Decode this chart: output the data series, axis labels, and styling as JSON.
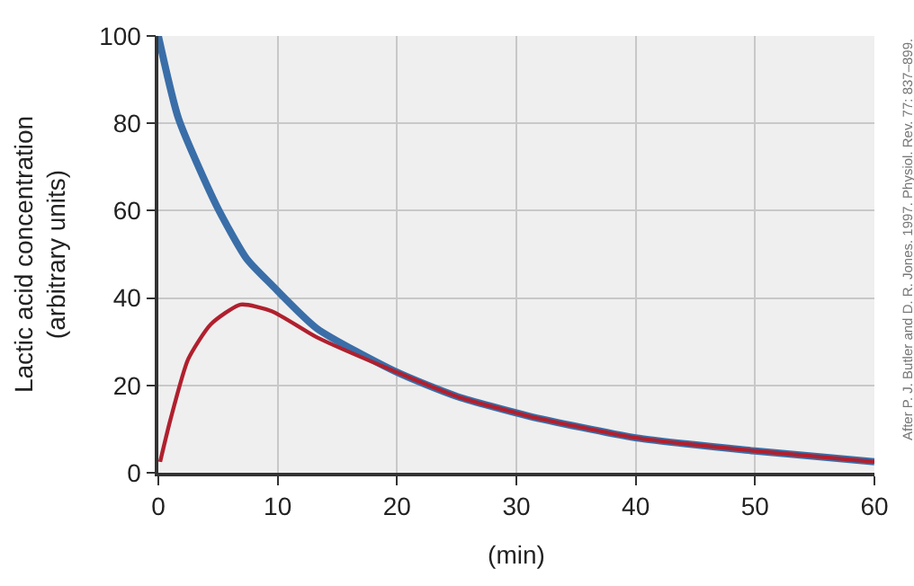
{
  "chart_data": {
    "type": "line",
    "xlabel": "(min)",
    "ylabel": "Lactic acid concentration\n(arbitrary units)",
    "annotations": [
      "After P. J. Butler and D. R. Jones. 1997. Physiol. Rev. 77: 837–899."
    ],
    "series": [
      {
        "color": "#3a6ea8",
        "x": [
          0,
          1.7,
          4.9,
          7.4,
          9.5,
          13.3,
          20,
          25,
          31,
          40,
          50,
          60
        ],
        "values": [
          100,
          81,
          61,
          49,
          43,
          33,
          23,
          17.5,
          13,
          8,
          5,
          2.5
        ]
      },
      {
        "color": "#b0202e",
        "x": [
          0.15,
          1,
          2.5,
          4.4,
          6.9,
          9.5,
          13.3,
          20,
          25,
          31,
          40,
          50,
          60
        ],
        "values": [
          2.5,
          12,
          26,
          34,
          38.5,
          37,
          31,
          23,
          17.5,
          13,
          8,
          5,
          2.5
        ]
      }
    ],
    "xlim": [
      0,
      60
    ],
    "xticks": [
      0,
      10,
      20,
      30,
      40,
      50,
      60
    ],
    "ylim": [
      0,
      100
    ],
    "yticks": [
      0,
      20,
      40,
      60,
      80,
      100
    ],
    "grid": true,
    "legend": false,
    "marker": "none",
    "line_style": "solid"
  }
}
